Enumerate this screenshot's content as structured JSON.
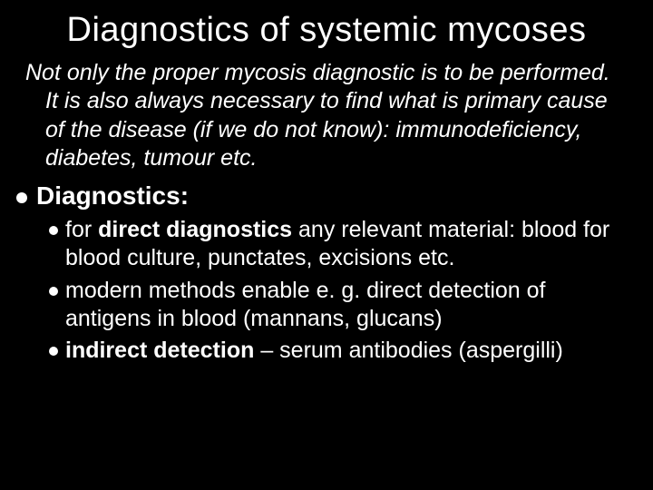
{
  "colors": {
    "background": "#000000",
    "text": "#ffffff",
    "bullet": "#ffffff"
  },
  "typography": {
    "title_fontsize": 38,
    "intro_fontsize": 25,
    "l1_fontsize": 28,
    "l2_fontsize": 25,
    "font_family": "Tahoma, Verdana, Arial, sans-serif"
  },
  "title": "Diagnostics of systemic mycoses",
  "intro": "Not only the proper mycosis diagnostic is to be performed. It is also always necessary to find what is primary cause of the disease (if we do not know): immunodeficiency, diabetes, tumour etc.",
  "heading_l1": "Diagnostics:",
  "sub_bullets": [
    {
      "prefix": "for ",
      "bold": "direct diagnostics",
      "rest": " any relevant material: blood for blood culture, punctates, excisions etc."
    },
    {
      "prefix": "modern methods enable e. g. direct detection of antigens in blood (mannans, glucans)",
      "bold": "",
      "rest": ""
    },
    {
      "prefix": "",
      "bold": "indirect detection",
      "rest": " – serum antibodies (aspergilli)"
    }
  ]
}
